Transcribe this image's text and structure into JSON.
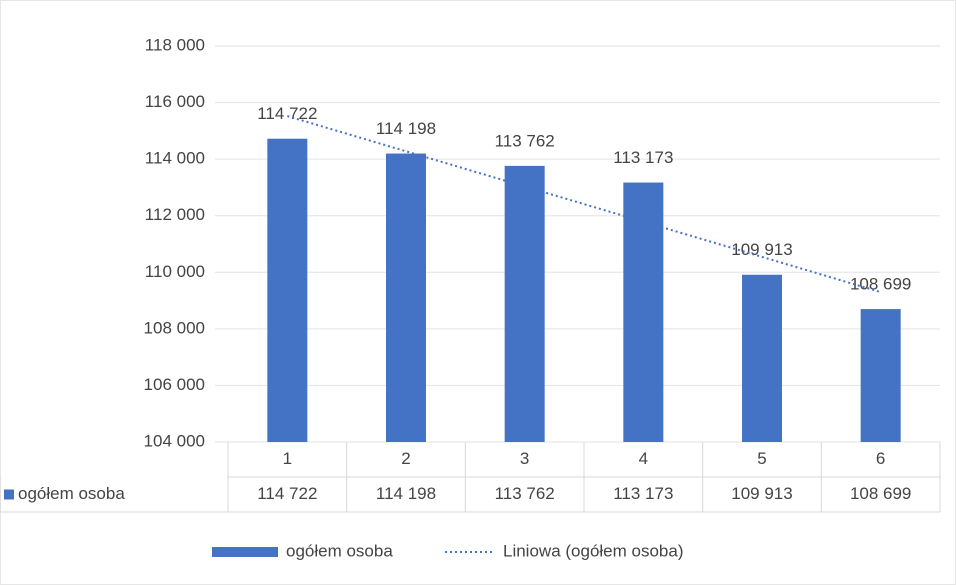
{
  "chart_data": {
    "type": "bar",
    "categories": [
      "1",
      "2",
      "3",
      "4",
      "5",
      "6"
    ],
    "series": [
      {
        "name": "ogółem osoba",
        "color": "#4472c4",
        "values": [
          114722,
          114198,
          113762,
          113173,
          109913,
          108699
        ],
        "value_labels": [
          "114 722",
          "114 198",
          "113 762",
          "113 173",
          "109 913",
          "108 699"
        ]
      }
    ],
    "trendline": {
      "name": "Liniowa (ogółem osoba)",
      "color": "#4472c4"
    },
    "ylim": [
      104000,
      118000
    ],
    "yticks": [
      {
        "value": 104000,
        "label": "104 000"
      },
      {
        "value": 106000,
        "label": "106 000"
      },
      {
        "value": 108000,
        "label": "108 000"
      },
      {
        "value": 110000,
        "label": "110 000"
      },
      {
        "value": 112000,
        "label": "112 000"
      },
      {
        "value": 114000,
        "label": "114 000"
      },
      {
        "value": 116000,
        "label": "116 000"
      },
      {
        "value": 118000,
        "label": "118 000"
      }
    ],
    "grid": true,
    "data_table": true,
    "legend": "bottom"
  }
}
